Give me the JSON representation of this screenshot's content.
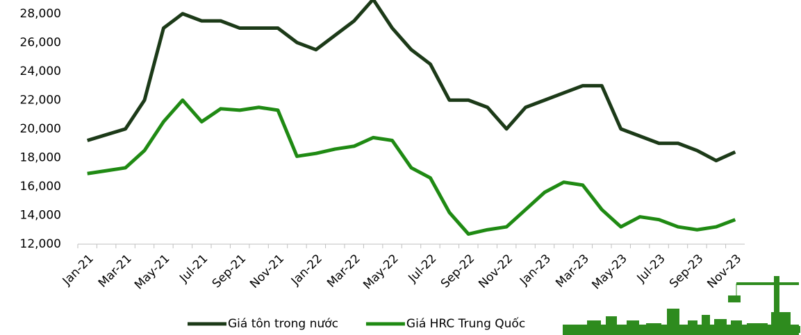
{
  "chart_data": {
    "type": "line",
    "categories": [
      "Jan-21",
      null,
      "Mar-21",
      null,
      "May-21",
      null,
      "Jul-21",
      null,
      "Sep-21",
      null,
      "Nov-21",
      null,
      "Jan-22",
      null,
      "Mar-22",
      null,
      "May-22",
      null,
      "Jul-22",
      null,
      "Sep-22",
      null,
      "Nov-22",
      null,
      "Jan-23",
      null,
      "Mar-23",
      null,
      "May-23",
      null,
      "Jul-23",
      null,
      "Sep-23",
      null,
      "Nov-23"
    ],
    "series": [
      {
        "name": "Giá tôn trong nước",
        "color": "#1c3a18",
        "values": [
          19200,
          19600,
          20000,
          22000,
          27000,
          28000,
          27500,
          27500,
          27000,
          27000,
          27000,
          26000,
          25500,
          26500,
          27500,
          29000,
          27000,
          25500,
          24500,
          22000,
          22000,
          21500,
          20000,
          21500,
          22000,
          22500,
          23000,
          23000,
          20000,
          19500,
          19000,
          19000,
          18500,
          17800,
          18400
        ]
      },
      {
        "name": "Giá HRC Trung Quốc",
        "color": "#1f8a13",
        "values": [
          16900,
          17100,
          17300,
          18500,
          20500,
          22000,
          20500,
          21400,
          21300,
          21500,
          21300,
          18100,
          18300,
          18600,
          18800,
          19400,
          19200,
          17300,
          16600,
          14200,
          12700,
          13000,
          13200,
          14400,
          15600,
          16300,
          16100,
          14400,
          13200,
          13900,
          13700,
          13200,
          13000,
          13200,
          13700
        ]
      }
    ],
    "ylim": [
      12000,
      29000
    ],
    "yticks": [
      {
        "value": 12000,
        "label": "12,000"
      },
      {
        "value": 14000,
        "label": "14,000"
      },
      {
        "value": 16000,
        "label": "16,000"
      },
      {
        "value": 18000,
        "label": "18,000"
      },
      {
        "value": 20000,
        "label": "20,000"
      },
      {
        "value": 22000,
        "label": "22,000"
      },
      {
        "value": 24000,
        "label": "24,000"
      },
      {
        "value": 26000,
        "label": "26,000"
      },
      {
        "value": 28000,
        "label": "28,000"
      }
    ],
    "legend": "bottom"
  }
}
